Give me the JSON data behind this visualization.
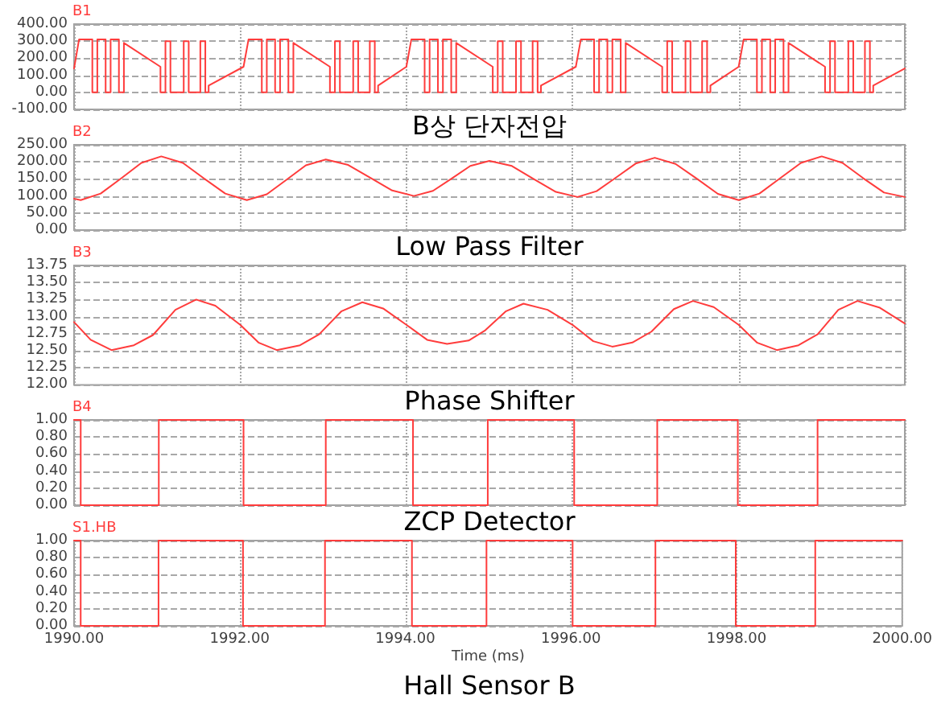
{
  "chart_data": [
    {
      "type": "line",
      "title": "B상 단자전압",
      "grid": true,
      "legend": "top left",
      "marker": "none",
      "line_style": "solid",
      "tick_labels": "y",
      "xlim": [
        1990,
        2000
      ],
      "xticks": [
        1990,
        1992,
        1994,
        1996,
        1998,
        2000
      ],
      "ylim": [
        -100,
        400
      ],
      "yticks": [
        {
          "value": -100,
          "label": "-100.00"
        },
        {
          "value": 0,
          "label": "0.00"
        },
        {
          "value": 100,
          "label": "100.00"
        },
        {
          "value": 200,
          "label": "200.00"
        },
        {
          "value": 300,
          "label": "300.00"
        },
        {
          "value": 400,
          "label": "400.00"
        }
      ],
      "x": [
        1990,
        1990.06,
        1990.22,
        1990.22,
        1990.28,
        1990.28,
        1990.38,
        1990.38,
        1990.44,
        1990.44,
        1990.54,
        1990.54,
        1990.6,
        1990.6,
        1991.04,
        1991.04,
        1991.1,
        1991.1,
        1991.16,
        1991.16,
        1991.32,
        1991.32,
        1991.38,
        1991.38,
        1991.52,
        1991.52,
        1991.58,
        1991.58,
        1991.62,
        1991.62,
        1992.04,
        1992.1,
        1992.26,
        1992.26,
        1992.32,
        1992.32,
        1992.42,
        1992.42,
        1992.48,
        1992.48,
        1992.58,
        1992.58,
        1992.64,
        1992.64,
        1993.08,
        1993.08,
        1993.14,
        1993.14,
        1993.2,
        1993.2,
        1993.36,
        1993.36,
        1993.42,
        1993.42,
        1993.56,
        1993.56,
        1993.62,
        1993.62,
        1993.66,
        1993.66,
        1994,
        1994.06,
        1994.22,
        1994.22,
        1994.28,
        1994.28,
        1994.38,
        1994.38,
        1994.44,
        1994.44,
        1994.54,
        1994.54,
        1994.6,
        1994.6,
        1995.04,
        1995.04,
        1995.1,
        1995.1,
        1995.16,
        1995.16,
        1995.32,
        1995.32,
        1995.38,
        1995.38,
        1995.52,
        1995.52,
        1995.58,
        1995.58,
        1995.62,
        1995.62,
        1996.04,
        1996.1,
        1996.26,
        1996.26,
        1996.32,
        1996.32,
        1996.42,
        1996.42,
        1996.48,
        1996.48,
        1996.58,
        1996.58,
        1996.64,
        1996.64,
        1997.08,
        1997.08,
        1997.14,
        1997.14,
        1997.2,
        1997.2,
        1997.36,
        1997.36,
        1997.42,
        1997.42,
        1997.56,
        1997.56,
        1997.62,
        1997.62,
        1997.66,
        1997.66,
        1998,
        1998.06,
        1998.22,
        1998.22,
        1998.28,
        1998.28,
        1998.38,
        1998.38,
        1998.44,
        1998.44,
        1998.54,
        1998.54,
        1998.6,
        1998.6,
        1999.04,
        1999.04,
        1999.1,
        1999.1,
        1999.16,
        1999.16,
        1999.32,
        1999.32,
        1999.38,
        1999.38,
        1999.52,
        1999.52,
        1999.58,
        1999.58,
        1999.62,
        1999.62,
        2000
      ],
      "series": [
        {
          "name": "B1",
          "color": "#ff3c3c",
          "values": [
            140,
            310,
            310,
            0,
            0,
            310,
            310,
            0,
            0,
            310,
            310,
            0,
            0,
            290,
            150,
            0,
            0,
            300,
            300,
            0,
            0,
            300,
            300,
            0,
            0,
            300,
            300,
            0,
            0,
            40,
            150,
            310,
            310,
            0,
            0,
            310,
            310,
            0,
            0,
            310,
            310,
            0,
            0,
            290,
            150,
            0,
            0,
            300,
            300,
            0,
            0,
            300,
            300,
            0,
            0,
            300,
            300,
            0,
            0,
            40,
            150,
            310,
            310,
            0,
            0,
            310,
            310,
            0,
            0,
            310,
            310,
            0,
            0,
            290,
            150,
            0,
            0,
            300,
            300,
            0,
            0,
            300,
            300,
            0,
            0,
            300,
            300,
            0,
            0,
            40,
            150,
            310,
            310,
            0,
            0,
            310,
            310,
            0,
            0,
            310,
            310,
            0,
            0,
            290,
            150,
            0,
            0,
            300,
            300,
            0,
            0,
            300,
            300,
            0,
            0,
            300,
            300,
            0,
            0,
            40,
            150,
            310,
            310,
            0,
            0,
            310,
            310,
            0,
            0,
            310,
            310,
            0,
            0,
            290,
            150,
            0,
            0,
            300,
            300,
            0,
            0,
            300,
            300,
            0,
            0,
            300,
            300,
            0,
            0,
            40,
            140
          ]
        }
      ]
    },
    {
      "type": "line",
      "title": "Low Pass Filter",
      "grid": true,
      "legend": "top left",
      "marker": "none",
      "line_style": "solid",
      "tick_labels": "y",
      "xlim": [
        1990,
        2000
      ],
      "xticks": [
        1990,
        1992,
        1994,
        1996,
        1998,
        2000
      ],
      "ylim": [
        0,
        250
      ],
      "yticks": [
        {
          "value": 0,
          "label": "0.00"
        },
        {
          "value": 50,
          "label": "50.00"
        },
        {
          "value": 100,
          "label": "100.00"
        },
        {
          "value": 150,
          "label": "150.00"
        },
        {
          "value": 200,
          "label": "200.00"
        },
        {
          "value": 250,
          "label": "250.00"
        }
      ],
      "x": [
        1990,
        1990.08,
        1990.32,
        1990.57,
        1990.81,
        1991.05,
        1991.31,
        1991.56,
        1991.82,
        1992.08,
        1992.32,
        1992.56,
        1992.79,
        1993.03,
        1993.3,
        1993.56,
        1993.83,
        1994.09,
        1994.32,
        1994.55,
        1994.77,
        1995,
        1995.27,
        1995.53,
        1995.8,
        1996.06,
        1996.29,
        1996.53,
        1996.76,
        1996.99,
        1997.24,
        1997.5,
        1997.75,
        1998,
        1998.25,
        1998.5,
        1998.75,
        1999,
        1999.25,
        1999.5,
        1999.75,
        2000
      ],
      "series": [
        {
          "name": "B2",
          "color": "#ff3c3c",
          "values": [
            92,
            88,
            107,
            152,
            197,
            216,
            197,
            152,
            107,
            88,
            105,
            148,
            190,
            207,
            191,
            154,
            116,
            100,
            115,
            152,
            188,
            203,
            188,
            150,
            112,
            97,
            114,
            155,
            195,
            212,
            194,
            150,
            106,
            88,
            107,
            152,
            197,
            216,
            197,
            152,
            110,
            97
          ]
        }
      ]
    },
    {
      "type": "line",
      "title": "Phase Shifter",
      "grid": true,
      "legend": "top left",
      "marker": "none",
      "line_style": "solid",
      "tick_labels": "y",
      "xlim": [
        1990,
        2000
      ],
      "xticks": [
        1990,
        1992,
        1994,
        1996,
        1998,
        2000
      ],
      "ylim": [
        12,
        13.75
      ],
      "yticks": [
        {
          "value": 12,
          "label": "12.00"
        },
        12.25,
        {
          "value": 12.5,
          "label": "12.50"
        },
        12.75,
        {
          "value": 13,
          "label": "13.00"
        },
        13.25,
        {
          "value": 13.5,
          "label": "13.50"
        },
        13.75
      ],
      "x": [
        1990,
        1990.2,
        1990.45,
        1990.72,
        1990.95,
        1991.22,
        1991.47,
        1991.7,
        1992,
        1992.22,
        1992.44,
        1992.72,
        1992.95,
        1993.22,
        1993.47,
        1993.72,
        1994,
        1994.25,
        1994.49,
        1994.75,
        1994.95,
        1995.2,
        1995.41,
        1995.7,
        1996,
        1996.25,
        1996.48,
        1996.72,
        1996.95,
        1997.22,
        1997.45,
        1997.7,
        1998,
        1998.22,
        1998.46,
        1998.72,
        1998.95,
        1999.2,
        1999.43,
        1999.7,
        2000
      ],
      "series": [
        {
          "name": "B3",
          "color": "#ff3c3c",
          "values": [
            12.92,
            12.66,
            12.51,
            12.58,
            12.73,
            13.1,
            13.25,
            13.16,
            12.88,
            12.62,
            12.51,
            12.58,
            12.74,
            13.08,
            13.21,
            13.12,
            12.88,
            12.66,
            12.6,
            12.65,
            12.8,
            13.08,
            13.19,
            13.1,
            12.88,
            12.64,
            12.56,
            12.62,
            12.78,
            13.11,
            13.23,
            13.14,
            12.88,
            12.62,
            12.51,
            12.58,
            12.74,
            13.1,
            13.23,
            13.13,
            12.9
          ]
        }
      ]
    },
    {
      "type": "step",
      "title": "ZCP Detector",
      "grid": true,
      "legend": "top left",
      "marker": "none",
      "line_style": "solid",
      "tick_labels": "y",
      "xlim": [
        1990,
        2000
      ],
      "xticks": [
        1990,
        1992,
        1994,
        1996,
        1998,
        2000
      ],
      "ylim": [
        0,
        1
      ],
      "yticks": [
        {
          "value": 0,
          "label": "0.00"
        },
        {
          "value": 0.2,
          "label": "0.20"
        },
        {
          "value": 0.4,
          "label": "0.40"
        },
        {
          "value": 0.6,
          "label": "0.60"
        },
        {
          "value": 0.8,
          "label": "0.80"
        },
        {
          "value": 1,
          "label": "1.00"
        }
      ],
      "x": [
        1990,
        1990.08,
        1991.02,
        1992.04,
        1993.03,
        1994.08,
        1994.98,
        1996.02,
        1997.02,
        1997.99,
        1998.95,
        2000
      ],
      "series": [
        {
          "name": "B4",
          "color": "#ff3c3c",
          "values": [
            1,
            0,
            1,
            0,
            1,
            0,
            1,
            0,
            1,
            0,
            1,
            1
          ]
        }
      ]
    },
    {
      "type": "step",
      "title": "Hall Sensor B",
      "xlabel": "Time (ms)",
      "grid": true,
      "legend": "top left",
      "marker": "none",
      "line_style": "solid",
      "xlim": [
        1990,
        2000
      ],
      "xticks": [
        {
          "value": 1990,
          "label": "1990.00"
        },
        {
          "value": 1992,
          "label": "1992.00"
        },
        {
          "value": 1994,
          "label": "1994.00"
        },
        {
          "value": 1996,
          "label": "1996.00"
        },
        {
          "value": 1998,
          "label": "1998.00"
        },
        {
          "value": 2000,
          "label": "2000.00"
        }
      ],
      "ylim": [
        0,
        1
      ],
      "yticks": [
        {
          "value": 0,
          "label": "0.00"
        },
        {
          "value": 0.2,
          "label": "0.20"
        },
        {
          "value": 0.4,
          "label": "0.40"
        },
        {
          "value": 0.6,
          "label": "0.60"
        },
        {
          "value": 0.8,
          "label": "0.80"
        },
        {
          "value": 1,
          "label": "1.00"
        }
      ],
      "x": [
        1990,
        1990.08,
        1991.02,
        1992.04,
        1993.03,
        1994.08,
        1994.98,
        1996.02,
        1997.02,
        1997.99,
        1998.95,
        2000
      ],
      "series": [
        {
          "name": "S1.HB",
          "color": "#ff3c3c",
          "values": [
            1,
            0,
            1,
            0,
            1,
            0,
            1,
            0,
            1,
            0,
            1,
            1
          ]
        }
      ]
    }
  ]
}
